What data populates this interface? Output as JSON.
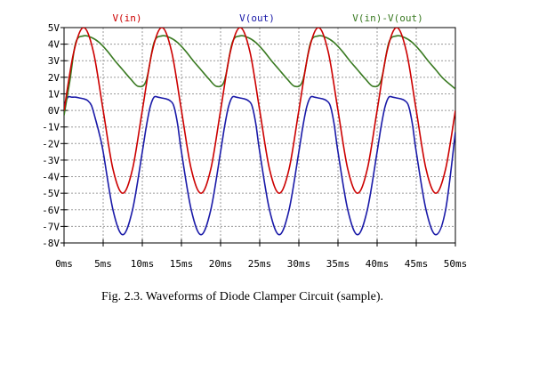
{
  "chart_data": {
    "type": "line",
    "xlim": [
      0,
      50
    ],
    "ylim": [
      -8,
      5
    ],
    "x_ticks": [
      0,
      5,
      10,
      15,
      20,
      25,
      30,
      35,
      40,
      45,
      50
    ],
    "x_tick_labels": [
      "0ms",
      "5ms",
      "10ms",
      "15ms",
      "20ms",
      "25ms",
      "30ms",
      "35ms",
      "40ms",
      "45ms",
      "50ms"
    ],
    "y_ticks": [
      5,
      4,
      3,
      2,
      1,
      0,
      -1,
      -2,
      -3,
      -4,
      -5,
      -6,
      -7,
      -8
    ],
    "y_tick_labels": [
      "5V",
      "4V",
      "3V",
      "2V",
      "1V",
      "0V",
      "-1V",
      "-2V",
      "-3V",
      "-4V",
      "-5V",
      "-6V",
      "-7V",
      "-8V"
    ],
    "grid": true,
    "legend": "top",
    "series": [
      {
        "name": "V(in)",
        "color": "#cc0000",
        "x": [
          0,
          1.25,
          2.5,
          3.75,
          5,
          6.25,
          7.5,
          8.75,
          10,
          11.25,
          12.5,
          13.75,
          15,
          16.25,
          17.5,
          18.75,
          20,
          21.25,
          22.5,
          23.75,
          25,
          26.25,
          27.5,
          28.75,
          30,
          31.25,
          32.5,
          33.75,
          35,
          36.25,
          37.5,
          38.75,
          40,
          41.25,
          42.5,
          43.75,
          45,
          46.25,
          47.5,
          48.75,
          50
        ],
        "values": [
          0,
          3.54,
          5,
          3.54,
          0,
          -3.54,
          -5,
          -3.54,
          0,
          3.54,
          5,
          3.54,
          0,
          -3.54,
          -5,
          -3.54,
          0,
          3.54,
          5,
          3.54,
          0,
          -3.54,
          -5,
          -3.54,
          0,
          3.54,
          5,
          3.54,
          0,
          -3.54,
          -5,
          -3.54,
          0,
          3.54,
          5,
          3.54,
          0,
          -3.54,
          -5,
          -3.54,
          0
        ]
      },
      {
        "name": "V(out)",
        "color": "#1a1aa8",
        "x": [
          0,
          0.5,
          1,
          1.5,
          2,
          2.5,
          3,
          3.5,
          4,
          4.5,
          5,
          6.25,
          7.5,
          8.75,
          10,
          10.5,
          11,
          11.5,
          12,
          12.5,
          13,
          13.5,
          14,
          14.5,
          15,
          16.25,
          17.5,
          18.75,
          20,
          20.5,
          21,
          21.5,
          22,
          22.5,
          23,
          23.5,
          24,
          24.5,
          25,
          26.25,
          27.5,
          28.75,
          30,
          30.5,
          31,
          31.5,
          32,
          32.5,
          33,
          33.5,
          34,
          34.5,
          35,
          36.25,
          37.5,
          38.75,
          40,
          40.5,
          41,
          41.5,
          42,
          42.5,
          43,
          43.5,
          44,
          44.5,
          45,
          46.25,
          47.5,
          48.75,
          50
        ],
        "values": [
          0.3,
          0.8,
          0.8,
          0.8,
          0.75,
          0.7,
          0.6,
          0.3,
          -0.5,
          -1.4,
          -2.5,
          -6.0,
          -7.5,
          -6.0,
          -2.5,
          -1.0,
          0.2,
          0.8,
          0.8,
          0.75,
          0.7,
          0.6,
          0.3,
          -0.8,
          -2.5,
          -6.0,
          -7.5,
          -6.0,
          -2.5,
          -1.0,
          0.2,
          0.8,
          0.8,
          0.75,
          0.7,
          0.6,
          0.3,
          -0.8,
          -2.5,
          -6.0,
          -7.5,
          -6.0,
          -2.5,
          -1.0,
          0.2,
          0.8,
          0.8,
          0.75,
          0.7,
          0.6,
          0.3,
          -0.8,
          -2.5,
          -6.0,
          -7.5,
          -6.0,
          -2.5,
          -1.0,
          0.2,
          0.8,
          0.8,
          0.75,
          0.7,
          0.6,
          0.3,
          -0.8,
          -2.5,
          -6.0,
          -7.5,
          -6.0,
          -1.3
        ]
      },
      {
        "name": "V(in)-V(out)",
        "color": "#3a7a22",
        "x": [
          0,
          0.75,
          1.5,
          2.5,
          3.5,
          4.5,
          5.5,
          6.5,
          7.5,
          8.5,
          9.5,
          10.5,
          11.5,
          12.5,
          13.5,
          14.5,
          15.5,
          16.5,
          17.5,
          18.5,
          19.5,
          20.5,
          21.5,
          22.5,
          23.5,
          24.5,
          25.5,
          26.5,
          27.5,
          28.5,
          29.5,
          30.5,
          31.5,
          32.5,
          33.5,
          34.5,
          35.5,
          36.5,
          37.5,
          38.5,
          39.5,
          40.5,
          41.5,
          42.5,
          43.5,
          44.5,
          45.5,
          46.5,
          47.5,
          48.5,
          50
        ],
        "values": [
          -0.3,
          1.8,
          4.1,
          4.5,
          4.4,
          4.1,
          3.6,
          3.0,
          2.45,
          1.9,
          1.45,
          1.8,
          4.1,
          4.5,
          4.4,
          4.1,
          3.6,
          3.0,
          2.45,
          1.9,
          1.45,
          1.8,
          4.1,
          4.5,
          4.4,
          4.1,
          3.6,
          3.0,
          2.45,
          1.9,
          1.45,
          1.8,
          4.1,
          4.5,
          4.4,
          4.1,
          3.6,
          3.0,
          2.45,
          1.9,
          1.45,
          1.8,
          4.1,
          4.5,
          4.4,
          4.1,
          3.6,
          3.0,
          2.45,
          1.9,
          1.3
        ]
      }
    ],
    "caption": "Fig. 2.3. Waveforms of Diode Clamper Circuit (sample)."
  }
}
